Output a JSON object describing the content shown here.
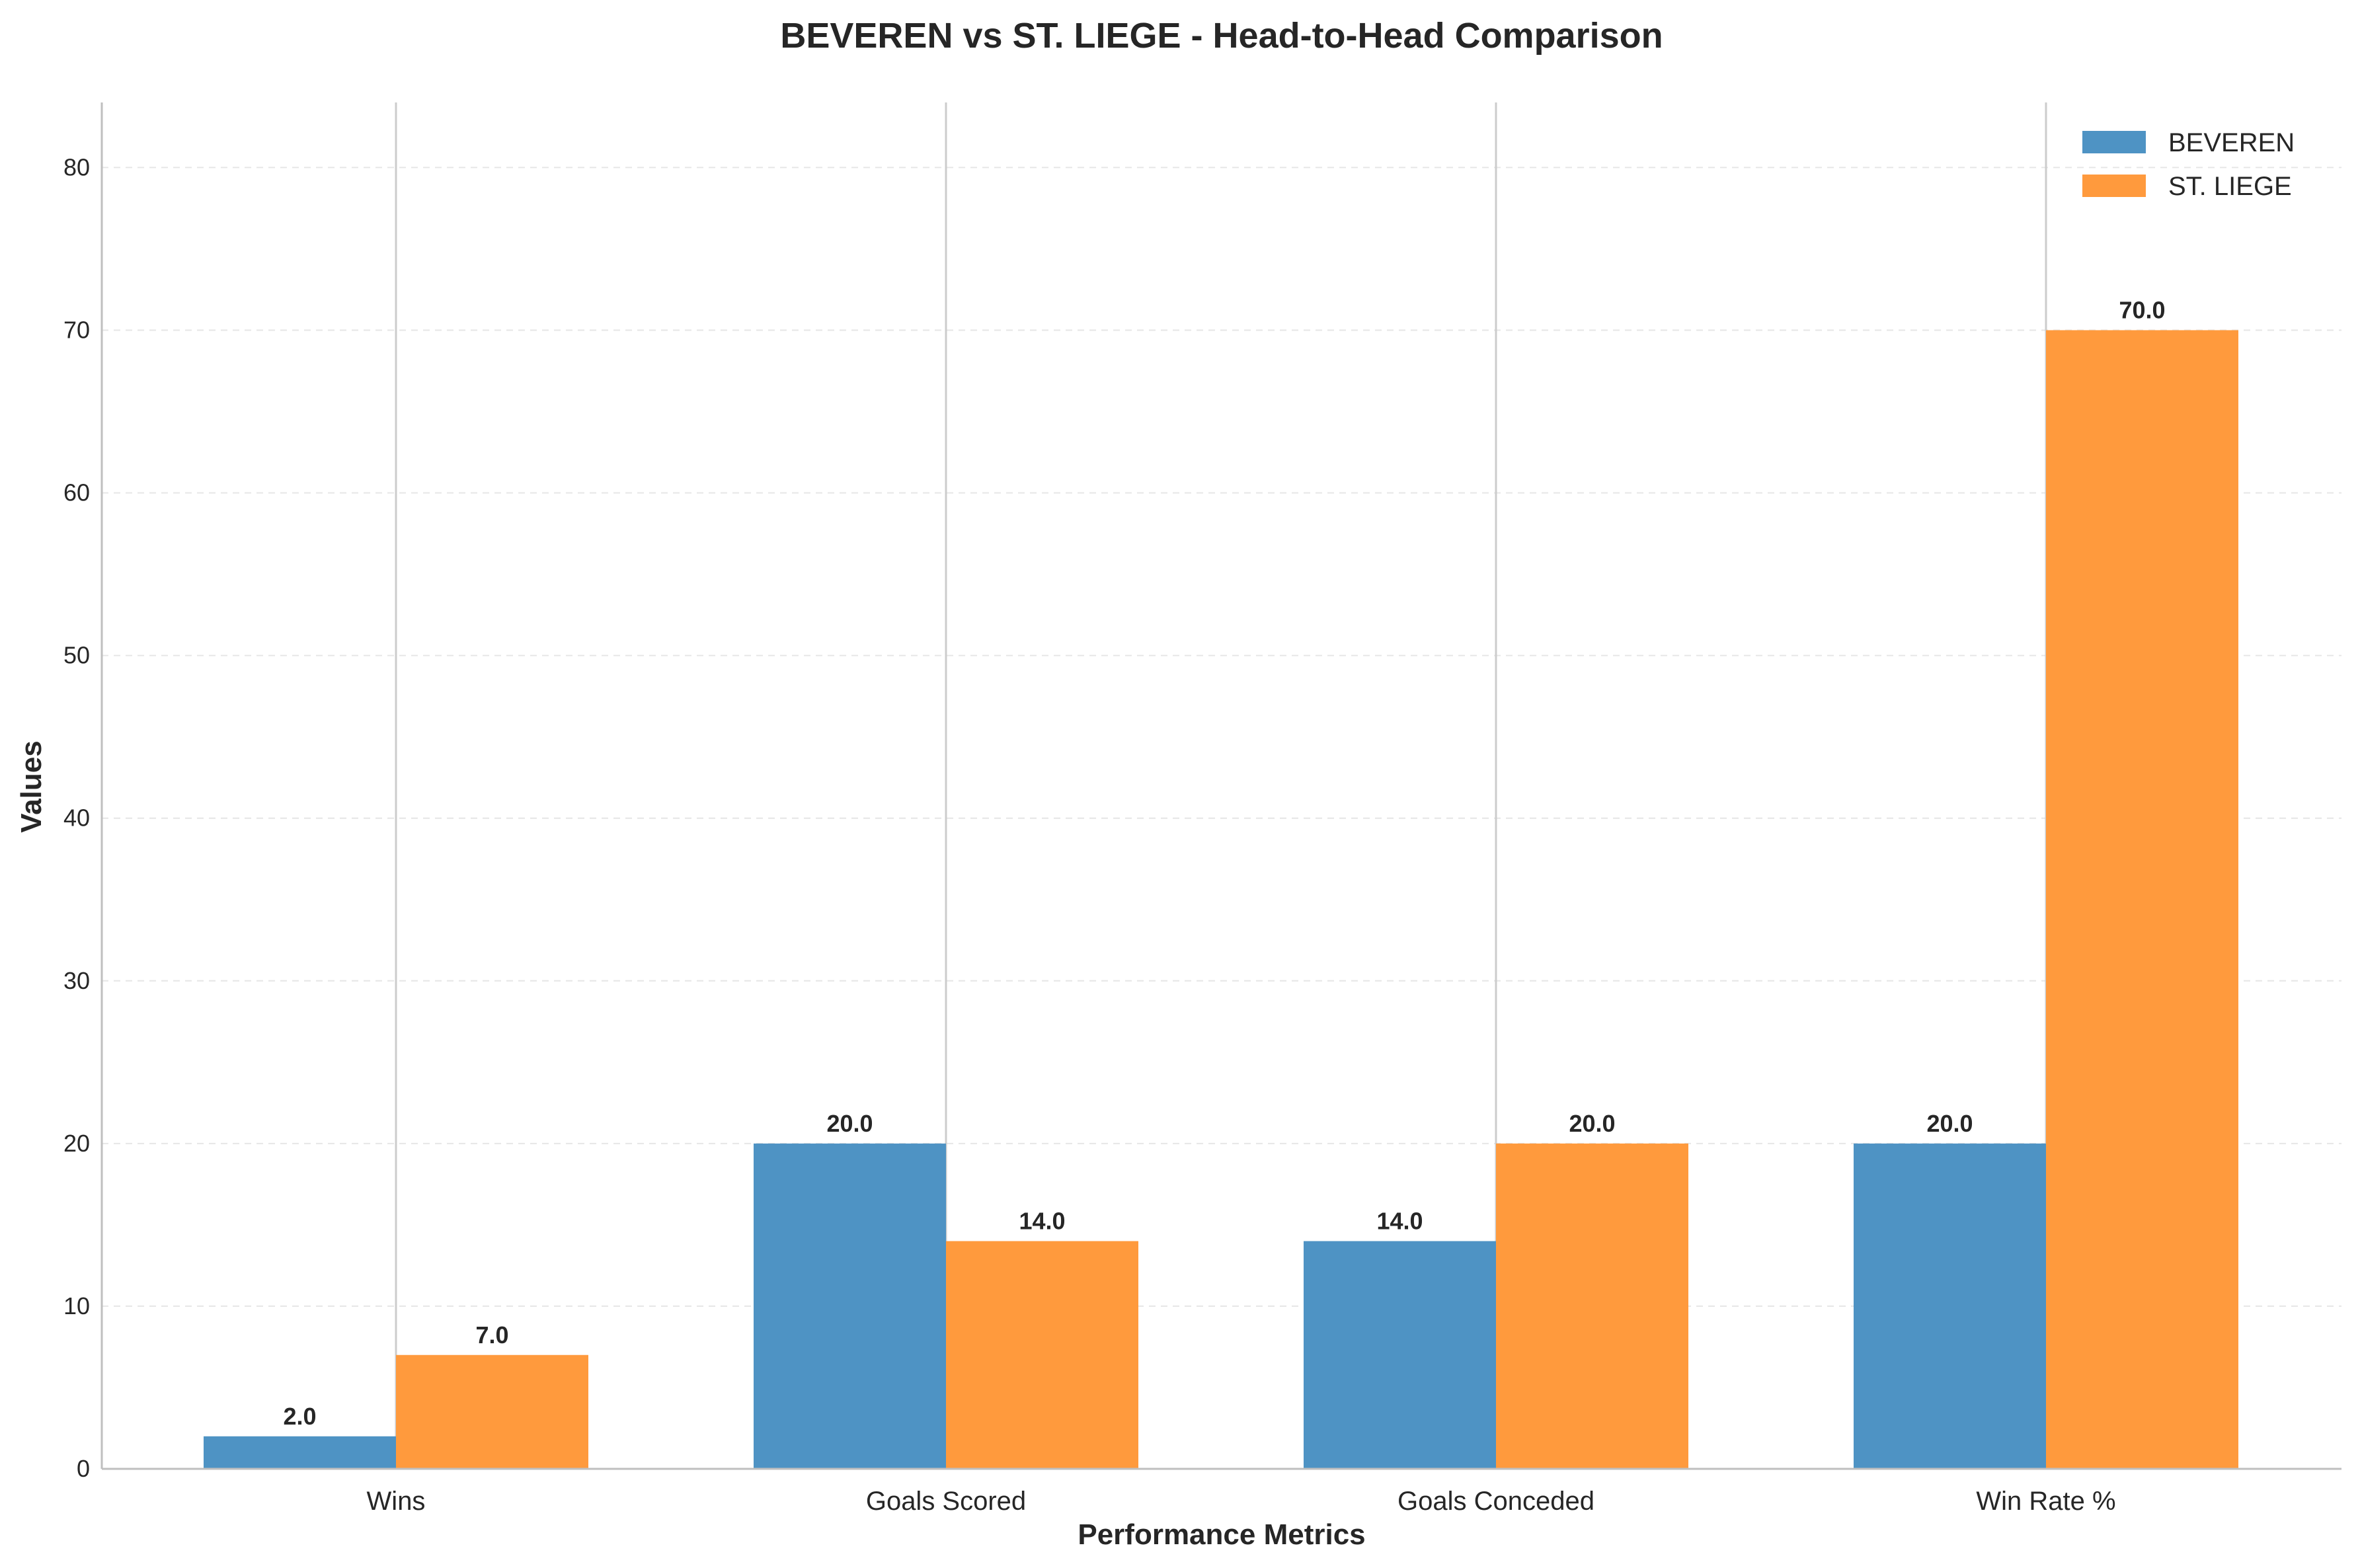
{
  "chart_data": {
    "type": "bar",
    "title": "BEVEREN vs ST. LIEGE - Head-to-Head Comparison",
    "xlabel": "Performance Metrics",
    "ylabel": "Values",
    "categories": [
      "Wins",
      "Goals Scored",
      "Goals Conceded",
      "Win Rate %"
    ],
    "series": [
      {
        "name": "BEVEREN",
        "values": [
          2.0,
          20.0,
          14.0,
          20.0
        ],
        "color": "#4e93c4"
      },
      {
        "name": "ST. LIEGE",
        "values": [
          7.0,
          14.0,
          20.0,
          70.0
        ],
        "color": "#ff9a3d"
      }
    ],
    "yticks": [
      "0",
      "10",
      "20",
      "30",
      "40",
      "50",
      "60",
      "70",
      "80"
    ],
    "data_labels": [
      [
        "2.0",
        "20.0",
        "14.0",
        "20.0"
      ],
      [
        "7.0",
        "14.0",
        "20.0",
        "70.0"
      ]
    ],
    "ylim": [
      0,
      84
    ],
    "grid": "y-dashed",
    "legend": "top-right"
  }
}
